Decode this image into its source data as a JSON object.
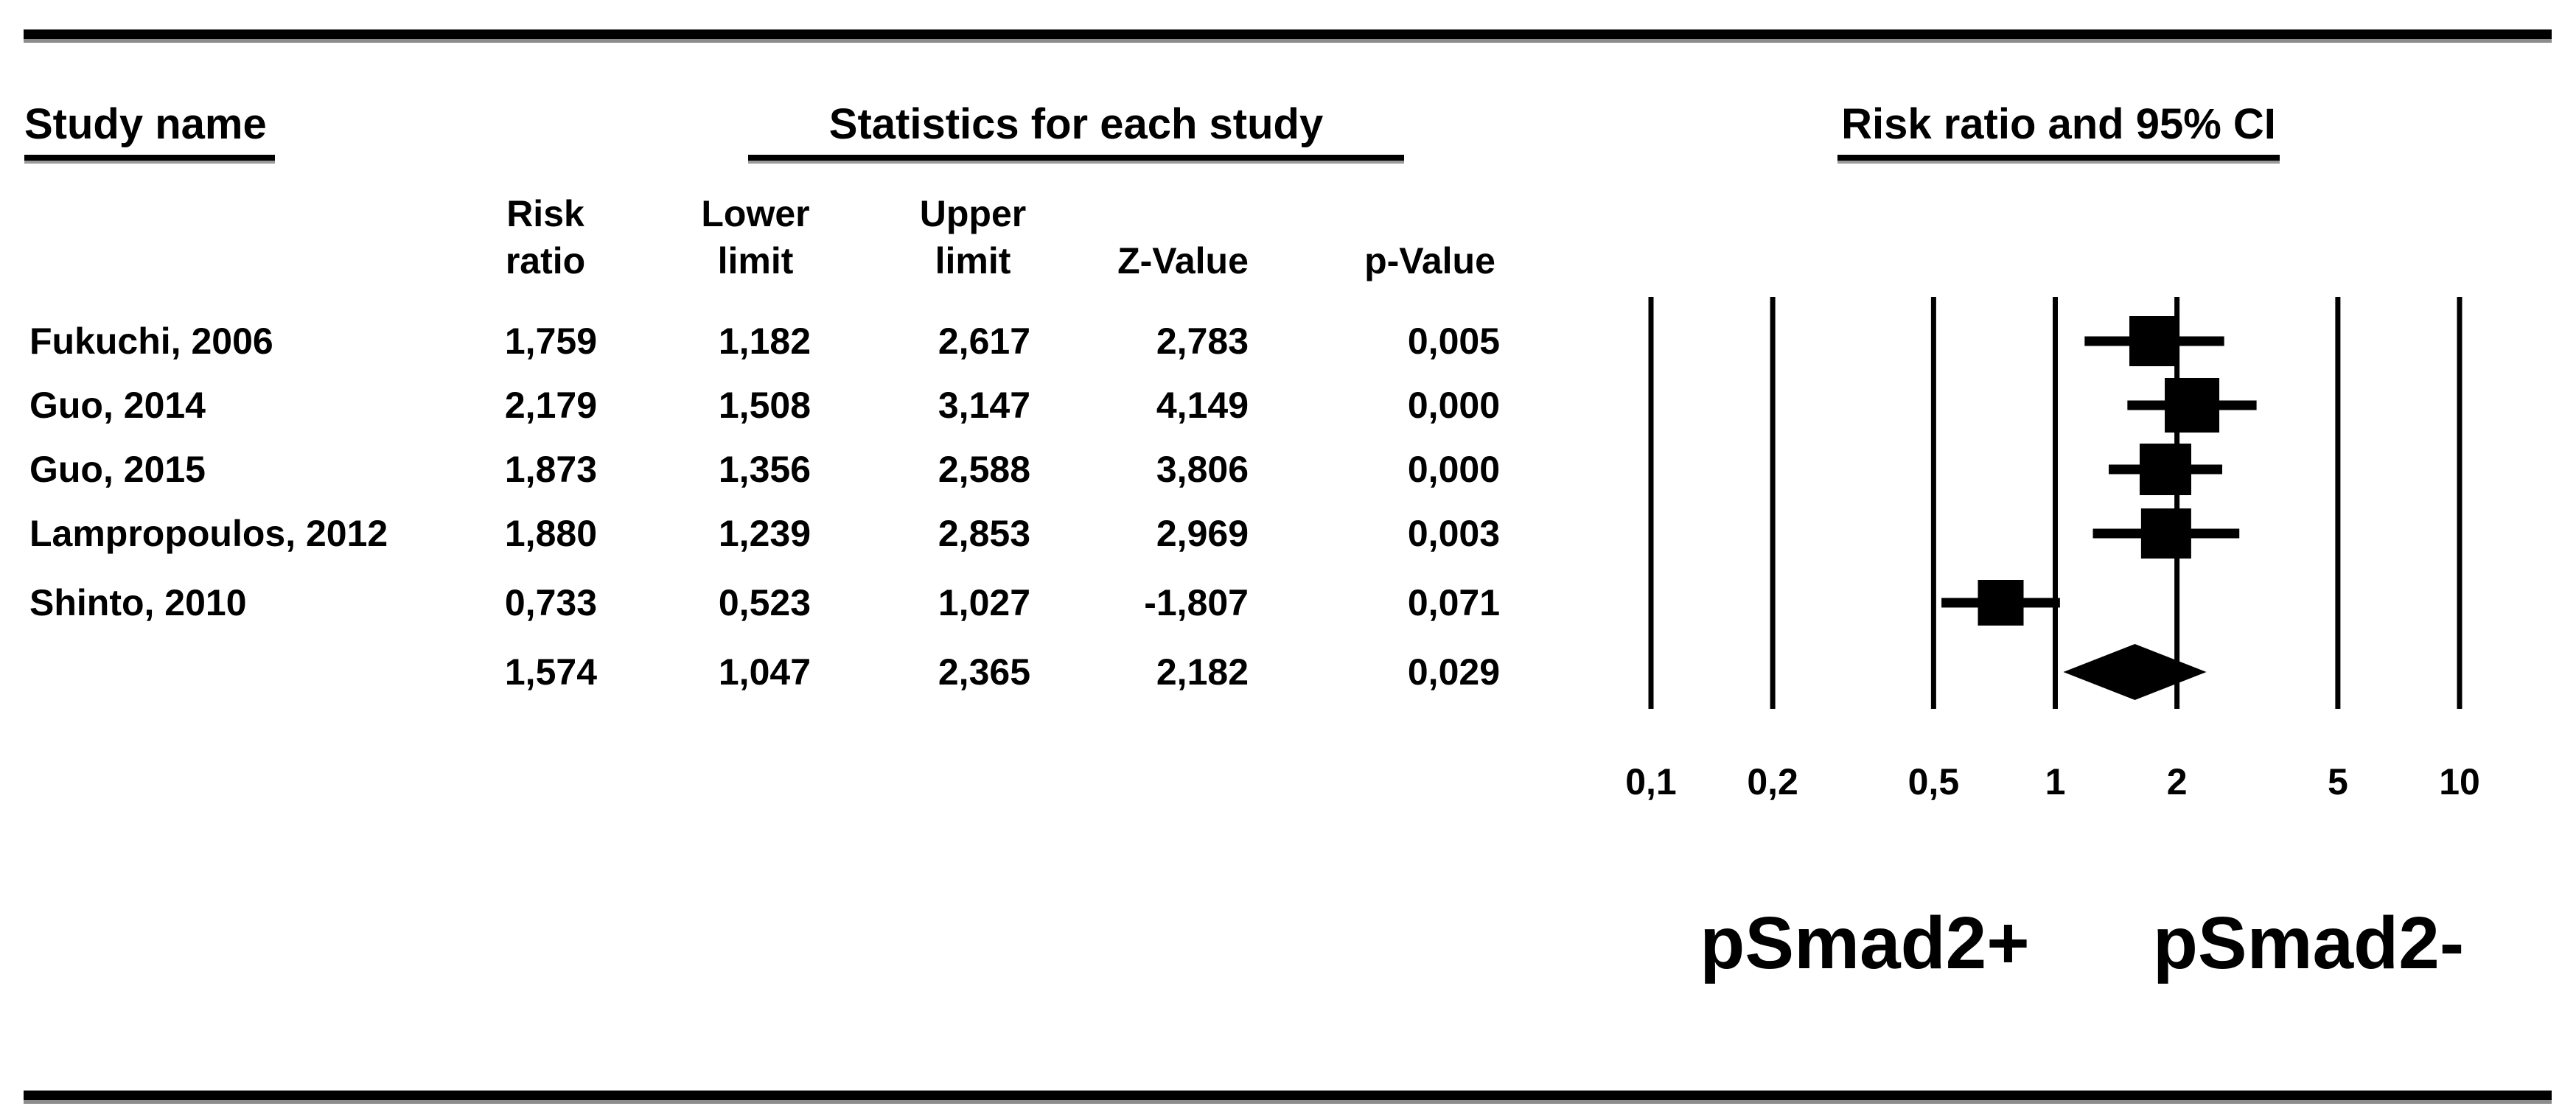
{
  "figure": {
    "headers": {
      "study": "Study name",
      "stats": "Statistics for each study",
      "plot": "Risk ratio and 95% CI"
    },
    "columns": [
      {
        "line1": "Risk",
        "line2": "ratio"
      },
      {
        "line1": "Lower",
        "line2": "limit"
      },
      {
        "line1": "Upper",
        "line2": "limit"
      },
      {
        "line1": "",
        "line2": "Z-Value"
      },
      {
        "line1": "",
        "line2": "p-Value"
      }
    ],
    "group_labels": [
      "pSmad2+",
      "pSmad2-"
    ]
  },
  "chart_data": {
    "type": "forest",
    "x_scale": "log10",
    "xlim": [
      0.1,
      10
    ],
    "grid": true,
    "x_ticks": [
      {
        "value": 0.1,
        "label": "0,1"
      },
      {
        "value": 0.2,
        "label": "0,2"
      },
      {
        "value": 0.5,
        "label": "0,5"
      },
      {
        "value": 1,
        "label": "1"
      },
      {
        "value": 2,
        "label": "2"
      },
      {
        "value": 5,
        "label": "5"
      },
      {
        "value": 10,
        "label": "10"
      }
    ],
    "rows": [
      {
        "study": "Fukuchi, 2006",
        "marker": "square",
        "risk_ratio": 1.759,
        "lower": 1.182,
        "upper": 2.617,
        "z_value": 2.783,
        "p_value": 0.005,
        "display": {
          "risk_ratio": "1,759",
          "lower": "1,182",
          "upper": "2,617",
          "z_value": "2,783",
          "p_value": "0,005"
        }
      },
      {
        "study": "Guo, 2014",
        "marker": "square",
        "risk_ratio": 2.179,
        "lower": 1.508,
        "upper": 3.147,
        "z_value": 4.149,
        "p_value": 0.0,
        "display": {
          "risk_ratio": "2,179",
          "lower": "1,508",
          "upper": "3,147",
          "z_value": "4,149",
          "p_value": "0,000"
        }
      },
      {
        "study": "Guo, 2015",
        "marker": "square",
        "risk_ratio": 1.873,
        "lower": 1.356,
        "upper": 2.588,
        "z_value": 3.806,
        "p_value": 0.0,
        "display": {
          "risk_ratio": "1,873",
          "lower": "1,356",
          "upper": "2,588",
          "z_value": "3,806",
          "p_value": "0,000"
        }
      },
      {
        "study": "Lampropoulos, 2012",
        "marker": "square",
        "risk_ratio": 1.88,
        "lower": 1.239,
        "upper": 2.853,
        "z_value": 2.969,
        "p_value": 0.003,
        "display": {
          "risk_ratio": "1,880",
          "lower": "1,239",
          "upper": "2,853",
          "z_value": "2,969",
          "p_value": "0,003"
        }
      },
      {
        "study": "Shinto, 2010",
        "marker": "square",
        "risk_ratio": 0.733,
        "lower": 0.523,
        "upper": 1.027,
        "z_value": -1.807,
        "p_value": 0.071,
        "display": {
          "risk_ratio": "0,733",
          "lower": "0,523",
          "upper": "1,027",
          "z_value": "-1,807",
          "p_value": "0,071"
        }
      },
      {
        "study": "",
        "marker": "diamond",
        "risk_ratio": 1.574,
        "lower": 1.047,
        "upper": 2.365,
        "z_value": 2.182,
        "p_value": 0.029,
        "display": {
          "risk_ratio": "1,574",
          "lower": "1,047",
          "upper": "2,365",
          "z_value": "2,182",
          "p_value": "0,029"
        }
      }
    ],
    "colors": {
      "foreground": "#000000",
      "background": "#ffffff",
      "rule_shadow": "#8c8c8c"
    }
  }
}
